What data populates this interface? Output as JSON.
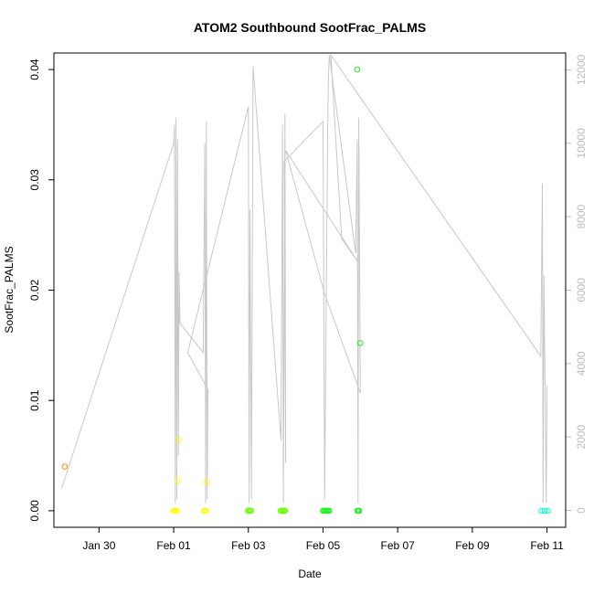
{
  "chart_data": {
    "type": "scatter",
    "title": "ATOM2 Southbound SootFrac_PALMS",
    "xlabel": "Date",
    "ylabel": "SootFrac_PALMS",
    "xlim": [
      "2017-01-28T19:00",
      "2017-02-11T12:00"
    ],
    "ylim": [
      -0.0015,
      0.0415
    ],
    "y2lim": [
      -460,
      12460
    ],
    "x_ticks": [
      {
        "date": "2017-01-30",
        "label": "Jan 30"
      },
      {
        "date": "2017-02-01",
        "label": "Feb 01"
      },
      {
        "date": "2017-02-03",
        "label": "Feb 03"
      },
      {
        "date": "2017-02-05",
        "label": "Feb 05"
      },
      {
        "date": "2017-02-07",
        "label": "Feb 07"
      },
      {
        "date": "2017-02-09",
        "label": "Feb 09"
      },
      {
        "date": "2017-02-11",
        "label": "Feb 11"
      }
    ],
    "y_ticks": [
      {
        "value": 0.0,
        "label": "0.00"
      },
      {
        "value": 0.01,
        "label": "0.01"
      },
      {
        "value": 0.02,
        "label": "0.02"
      },
      {
        "value": 0.03,
        "label": "0.03"
      },
      {
        "value": 0.04,
        "label": "0.04"
      }
    ],
    "y2_ticks": [
      {
        "value": 0,
        "label": "0"
      },
      {
        "value": 2000,
        "label": "2000"
      },
      {
        "value": 4000,
        "label": "4000"
      },
      {
        "value": 6000,
        "label": "6000"
      },
      {
        "value": 8000,
        "label": "8000"
      },
      {
        "value": 10000,
        "label": "10000"
      },
      {
        "value": 12000,
        "label": "12000"
      }
    ],
    "altitude_line": {
      "color": "#c8c8c8",
      "points": [
        [
          "2017-01-29T00:00",
          600
        ],
        [
          "2017-02-01T00:00",
          10000
        ],
        [
          "2017-02-01T00:30",
          10500
        ],
        [
          "2017-02-01T01:00",
          200
        ],
        [
          "2017-02-01T01:30",
          10700
        ],
        [
          "2017-02-01T02:00",
          300
        ],
        [
          "2017-02-01T02:30",
          10100
        ],
        [
          "2017-02-01T03:00",
          1500
        ],
        [
          "2017-02-01T03:30",
          6500
        ],
        [
          "2017-02-01T04:00",
          5100
        ],
        [
          "2017-02-01T19:00",
          4300
        ],
        [
          "2017-02-01T20:00",
          10000
        ],
        [
          "2017-02-01T20:30",
          200
        ],
        [
          "2017-02-01T21:00",
          10600
        ],
        [
          "2017-02-01T21:30",
          300
        ],
        [
          "2017-02-01T22:00",
          3300
        ],
        [
          "2017-02-01T09:00",
          4300
        ],
        [
          "2017-02-03T00:00",
          11000
        ],
        [
          "2017-02-03T00:30",
          200
        ],
        [
          "2017-02-03T01:00",
          8200
        ],
        [
          "2017-02-03T02:00",
          300
        ],
        [
          "2017-02-03T03:00",
          12100
        ],
        [
          "2017-02-03T21:00",
          1900
        ],
        [
          "2017-02-03T22:00",
          10500
        ],
        [
          "2017-02-03T22:30",
          200
        ],
        [
          "2017-02-03T23:30",
          10800
        ],
        [
          "2017-02-04T00:00",
          1300
        ],
        [
          "2017-02-03T23:00",
          9500
        ],
        [
          "2017-02-05T00:00",
          10600
        ],
        [
          "2017-02-05T01:00",
          300
        ],
        [
          "2017-02-05T03:00",
          10400
        ],
        [
          "2017-02-05T03:30",
          11800
        ],
        [
          "2017-02-05T04:00",
          12400
        ],
        [
          "2017-02-05T21:00",
          7000
        ],
        [
          "2017-02-05T22:00",
          10100
        ],
        [
          "2017-02-05T22:30",
          200
        ],
        [
          "2017-02-05T23:00",
          10700
        ],
        [
          "2017-02-05T23:30",
          6800
        ],
        [
          "2017-02-06T00:00",
          3200
        ],
        [
          "2017-02-05T01:00",
          5900
        ],
        [
          "2017-02-04T00:00",
          9800
        ],
        [
          "2017-02-05T22:00",
          6800
        ],
        [
          "2017-02-05T12:00",
          7400
        ],
        [
          "2017-02-05T05:00",
          12400
        ],
        [
          "2017-02-10T20:00",
          4200
        ],
        [
          "2017-02-10T21:00",
          8900
        ],
        [
          "2017-02-10T21:30",
          200
        ],
        [
          "2017-02-10T22:00",
          6400
        ],
        [
          "2017-02-10T23:30",
          200
        ],
        [
          "2017-02-11T00:00",
          3400
        ]
      ]
    },
    "series": [
      {
        "color": "#ff8c00",
        "points": [
          [
            "2017-01-29T02:00",
            0.004
          ]
        ]
      },
      {
        "color": "#ffff00",
        "points": [
          [
            "2017-02-01T00:00",
            0.0
          ],
          [
            "2017-02-01T00:40",
            0.0
          ],
          [
            "2017-02-01T01:20",
            0.0
          ],
          [
            "2017-02-01T02:00",
            0.0
          ],
          [
            "2017-02-01T02:30",
            0.0027
          ],
          [
            "2017-02-01T03:10",
            0.0064
          ],
          [
            "2017-02-01T19:30",
            0.0
          ],
          [
            "2017-02-01T20:10",
            0.0
          ],
          [
            "2017-02-01T20:50",
            0.0
          ],
          [
            "2017-02-01T21:20",
            0.0026
          ]
        ]
      },
      {
        "color": "#66ff00",
        "points": [
          [
            "2017-02-02T23:50",
            0.0
          ],
          [
            "2017-02-03T00:30",
            0.0
          ],
          [
            "2017-02-03T01:10",
            0.0
          ],
          [
            "2017-02-03T01:40",
            0.0
          ],
          [
            "2017-02-03T20:50",
            0.0
          ],
          [
            "2017-02-03T21:30",
            0.0
          ],
          [
            "2017-02-03T22:10",
            0.0
          ],
          [
            "2017-02-03T22:50",
            0.0
          ],
          [
            "2017-02-03T23:30",
            0.0
          ]
        ]
      },
      {
        "color": "#22ee22",
        "points": [
          [
            "2017-02-05T00:00",
            0.0
          ],
          [
            "2017-02-05T00:40",
            0.0
          ],
          [
            "2017-02-05T01:20",
            0.0
          ],
          [
            "2017-02-05T02:00",
            0.0
          ],
          [
            "2017-02-05T02:40",
            0.0
          ],
          [
            "2017-02-05T03:20",
            0.0
          ],
          [
            "2017-02-05T04:00",
            0.0
          ],
          [
            "2017-02-05T22:00",
            0.04
          ],
          [
            "2017-02-05T22:00",
            0.0
          ],
          [
            "2017-02-05T22:40",
            0.0
          ],
          [
            "2017-02-05T23:20",
            0.0
          ],
          [
            "2017-02-06T00:00",
            0.0152
          ]
        ]
      },
      {
        "color": "#00ffc8",
        "points": [
          [
            "2017-02-10T20:30",
            0.0
          ],
          [
            "2017-02-10T22:30",
            0.0
          ],
          [
            "2017-02-11T00:30",
            0.0
          ]
        ]
      }
    ]
  }
}
